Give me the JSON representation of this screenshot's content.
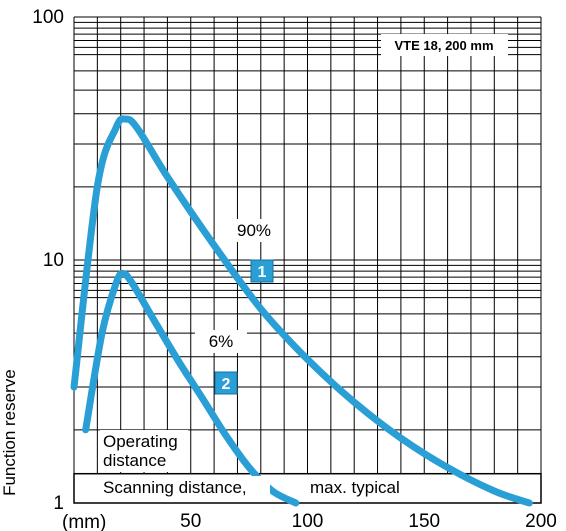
{
  "chart_data": {
    "type": "line",
    "title": "VTE 18, 200 mm",
    "xlabel": "(mm)",
    "ylabel": "Function reserve",
    "xlim": [
      0,
      200
    ],
    "ylim": [
      1,
      100
    ],
    "yscale": "log",
    "grid": true,
    "x_ticks": [
      {
        "value": 50,
        "label": "50"
      },
      {
        "value": 100,
        "label": "100"
      },
      {
        "value": 150,
        "label": "150"
      },
      {
        "value": 200,
        "label": "200"
      }
    ],
    "y_ticks": [
      {
        "value": 1,
        "label": "1"
      },
      {
        "value": 10,
        "label": "10"
      },
      {
        "value": 100,
        "label": "100"
      }
    ],
    "series": [
      {
        "badge": "1",
        "percent_label": "90%",
        "color": "#2a9fd6",
        "points": [
          [
            0,
            3.0
          ],
          [
            10,
            20
          ],
          [
            18,
            35
          ],
          [
            22,
            38
          ],
          [
            27,
            35
          ],
          [
            40,
            22
          ],
          [
            60,
            11.5
          ],
          [
            80,
            6.3
          ],
          [
            100,
            3.9
          ],
          [
            120,
            2.6
          ],
          [
            140,
            1.85
          ],
          [
            160,
            1.4
          ],
          [
            180,
            1.12
          ],
          [
            195,
            1.0
          ]
        ]
      },
      {
        "badge": "2",
        "percent_label": "6%",
        "color": "#2a9fd6",
        "points": [
          [
            5,
            2.0
          ],
          [
            12,
            5.0
          ],
          [
            18,
            8.0
          ],
          [
            21,
            8.8
          ],
          [
            25,
            8.0
          ],
          [
            35,
            5.5
          ],
          [
            45,
            3.8
          ],
          [
            55,
            2.7
          ],
          [
            65,
            1.9
          ],
          [
            75,
            1.4
          ],
          [
            85,
            1.12
          ],
          [
            95,
            1.0
          ]
        ]
      }
    ],
    "annotations": {
      "operating_distance": "Operating\ndistance",
      "scanning_distance": "Scanning distance,",
      "max_typical": "max. typical"
    }
  }
}
